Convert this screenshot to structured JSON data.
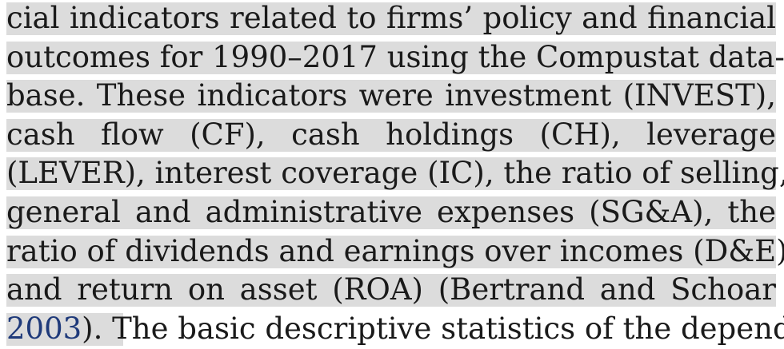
{
  "page": {
    "lines": [
      "cial indicators related to firms’ policy and financial",
      "outcomes for 1990–2017 using the Compustat data-",
      "base. These indicators were investment (INVEST),",
      "cash flow (CF), cash holdings (CH), leverage",
      "(LEVER), interest coverage (IC), the ratio of selling,",
      "general and administrative expenses (SG&A), the",
      "ratio of dividends and earnings over incomes (D&E),",
      "and return on asset (ROA) (Bertrand and Schoar"
    ],
    "last_line": {
      "citation_year": "2003",
      "rest": "). The basic descriptive statistics of the depend-"
    }
  },
  "colors": {
    "highlight": "#dcdcdc",
    "text": "#1a1a1a",
    "citation_link": "#1f3a7a"
  }
}
